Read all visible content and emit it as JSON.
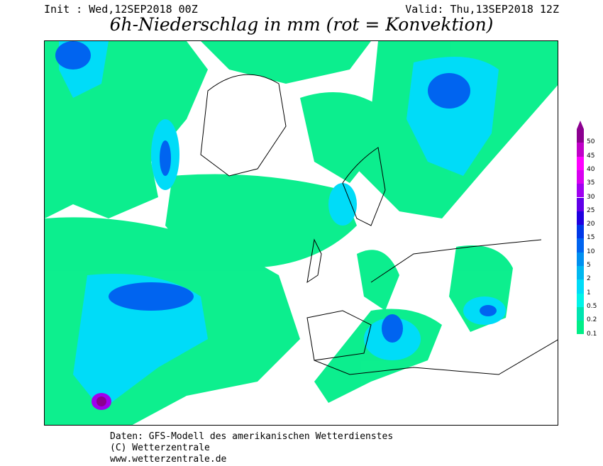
{
  "header": {
    "init": "Init : Wed,12SEP2018 00Z",
    "valid": "Valid: Thu,13SEP2018 12Z",
    "title": "6h-Niederschlag in mm (rot = Konvektion)"
  },
  "legend": {
    "levels": [
      "0.1",
      "0.2",
      "0.5",
      "1",
      "2",
      "5",
      "10",
      "15",
      "20",
      "25",
      "30",
      "35",
      "40",
      "45",
      "50"
    ],
    "colors": [
      "#00ee88",
      "#00e4b0",
      "#00f4e8",
      "#00dcf8",
      "#00b8f0",
      "#0090f0",
      "#0064f0",
      "#0038e8",
      "#2000e0",
      "#6000e8",
      "#a000f0",
      "#d800f0",
      "#ff00ff",
      "#c000c8",
      "#8c0090"
    ]
  },
  "footer": {
    "line1": "Daten: GFS-Modell des amerikanischen Wetterdienstes",
    "line2": "(C) Wetterzentrale",
    "line3": "www.wetterzentrale.de"
  }
}
